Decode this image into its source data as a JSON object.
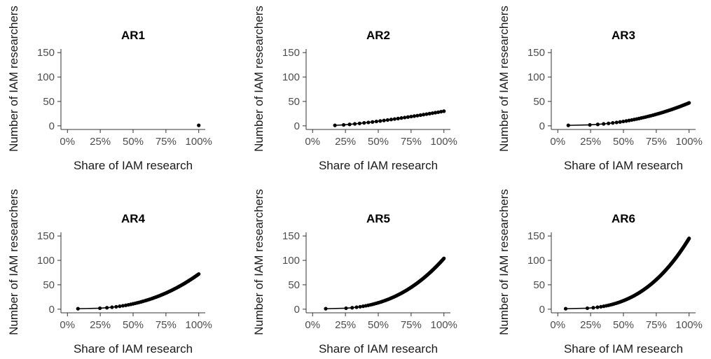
{
  "chart_data": [
    {
      "type": "line",
      "title": "AR1",
      "xlabel": "Share of IAM research",
      "ylabel": "Number of IAM researchers",
      "xlim": [
        0,
        1
      ],
      "ylim": [
        0,
        150
      ],
      "xticks": [
        {
          "value": 0,
          "label": "0%"
        },
        {
          "value": 0.25,
          "label": "25%"
        },
        {
          "value": 0.5,
          "label": "50%"
        },
        {
          "value": 0.75,
          "label": "75%"
        },
        {
          "value": 1,
          "label": "100%"
        }
      ],
      "yticks": [
        {
          "value": 0,
          "label": "0"
        },
        {
          "value": 50,
          "label": "50"
        },
        {
          "value": 100,
          "label": "100"
        },
        {
          "value": 150,
          "label": "150"
        }
      ],
      "max_researchers": 1,
      "x_start": 1.0,
      "curve_exponent": 1.0,
      "grid": false
    },
    {
      "type": "line",
      "title": "AR2",
      "xlabel": "Share of IAM research",
      "ylabel": "Number of IAM researchers",
      "xlim": [
        0,
        1
      ],
      "ylim": [
        0,
        150
      ],
      "xticks": [
        {
          "value": 0,
          "label": "0%"
        },
        {
          "value": 0.25,
          "label": "25%"
        },
        {
          "value": 0.5,
          "label": "50%"
        },
        {
          "value": 0.75,
          "label": "75%"
        },
        {
          "value": 1,
          "label": "100%"
        }
      ],
      "yticks": [
        {
          "value": 0,
          "label": "0"
        },
        {
          "value": 50,
          "label": "50"
        },
        {
          "value": 100,
          "label": "100"
        },
        {
          "value": 150,
          "label": "150"
        }
      ],
      "max_researchers": 30,
      "x_start": 0.17,
      "curve_exponent": 0.75,
      "grid": false
    },
    {
      "type": "line",
      "title": "AR3",
      "xlabel": "Share of IAM research",
      "ylabel": "Number of IAM researchers",
      "xlim": [
        0,
        1
      ],
      "ylim": [
        0,
        150
      ],
      "xticks": [
        {
          "value": 0,
          "label": "0%"
        },
        {
          "value": 0.25,
          "label": "25%"
        },
        {
          "value": 0.5,
          "label": "50%"
        },
        {
          "value": 0.75,
          "label": "75%"
        },
        {
          "value": 1,
          "label": "100%"
        }
      ],
      "yticks": [
        {
          "value": 0,
          "label": "0"
        },
        {
          "value": 50,
          "label": "50"
        },
        {
          "value": 100,
          "label": "100"
        },
        {
          "value": 150,
          "label": "150"
        }
      ],
      "max_researchers": 47,
      "x_start": 0.08,
      "curve_exponent": 0.45,
      "grid": false
    },
    {
      "type": "line",
      "title": "AR4",
      "xlabel": "Share of IAM research",
      "ylabel": "Number of IAM researchers",
      "xlim": [
        0,
        1
      ],
      "ylim": [
        0,
        150
      ],
      "xticks": [
        {
          "value": 0,
          "label": "0%"
        },
        {
          "value": 0.25,
          "label": "25%"
        },
        {
          "value": 0.5,
          "label": "50%"
        },
        {
          "value": 0.75,
          "label": "75%"
        },
        {
          "value": 1,
          "label": "100%"
        }
      ],
      "yticks": [
        {
          "value": 0,
          "label": "0"
        },
        {
          "value": 50,
          "label": "50"
        },
        {
          "value": 100,
          "label": "100"
        },
        {
          "value": 150,
          "label": "150"
        }
      ],
      "max_researchers": 72,
      "x_start": 0.08,
      "curve_exponent": 0.4,
      "grid": false
    },
    {
      "type": "line",
      "title": "AR5",
      "xlabel": "Share of IAM research",
      "ylabel": "Number of IAM researchers",
      "xlim": [
        0,
        1
      ],
      "ylim": [
        0,
        150
      ],
      "xticks": [
        {
          "value": 0,
          "label": "0%"
        },
        {
          "value": 0.25,
          "label": "25%"
        },
        {
          "value": 0.5,
          "label": "50%"
        },
        {
          "value": 0.75,
          "label": "75%"
        },
        {
          "value": 1,
          "label": "100%"
        }
      ],
      "yticks": [
        {
          "value": 0,
          "label": "0"
        },
        {
          "value": 50,
          "label": "50"
        },
        {
          "value": 100,
          "label": "100"
        },
        {
          "value": 150,
          "label": "150"
        }
      ],
      "max_researchers": 104,
      "x_start": 0.1,
      "curve_exponent": 0.38,
      "grid": false
    },
    {
      "type": "line",
      "title": "AR6",
      "xlabel": "Share of IAM research",
      "ylabel": "Number of IAM researchers",
      "xlim": [
        0,
        1
      ],
      "ylim": [
        0,
        150
      ],
      "xticks": [
        {
          "value": 0,
          "label": "0%"
        },
        {
          "value": 0.25,
          "label": "25%"
        },
        {
          "value": 0.5,
          "label": "50%"
        },
        {
          "value": 0.75,
          "label": "75%"
        },
        {
          "value": 1,
          "label": "100%"
        }
      ],
      "yticks": [
        {
          "value": 0,
          "label": "0"
        },
        {
          "value": 50,
          "label": "50"
        },
        {
          "value": 100,
          "label": "100"
        },
        {
          "value": 150,
          "label": "150"
        }
      ],
      "max_researchers": 145,
      "x_start": 0.06,
      "curve_exponent": 0.35,
      "grid": false
    }
  ]
}
